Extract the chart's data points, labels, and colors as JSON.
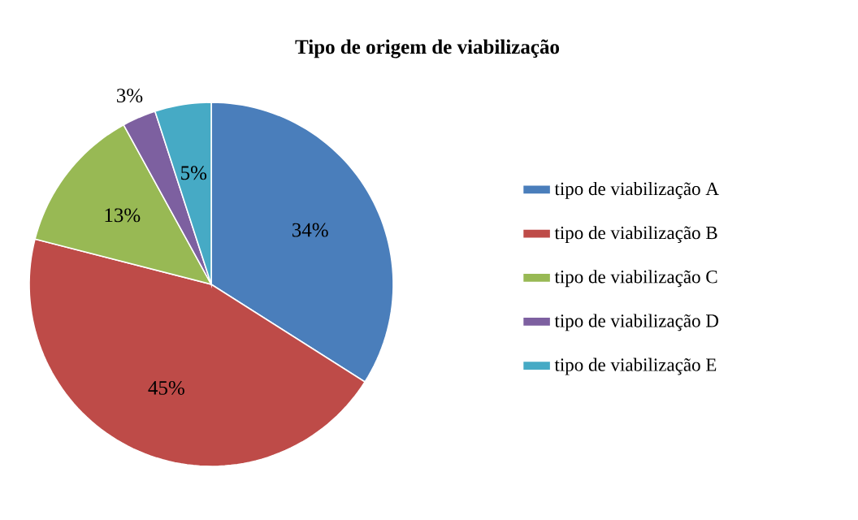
{
  "chart_data": {
    "type": "pie",
    "title": "Tipo de origem de viabilização",
    "categories": [
      "tipo de viabilização A",
      "tipo de viabilização B",
      "tipo de viabilização C",
      "tipo de viabilização D",
      "tipo de viabilização E"
    ],
    "values": [
      34,
      45,
      13,
      3,
      5
    ],
    "value_labels": [
      "34%",
      "45%",
      "13%",
      "3%",
      "5%"
    ],
    "colors": [
      "#4a7ebb",
      "#be4b48",
      "#98b954",
      "#7d60a0",
      "#46aac5"
    ],
    "legend": "right"
  }
}
